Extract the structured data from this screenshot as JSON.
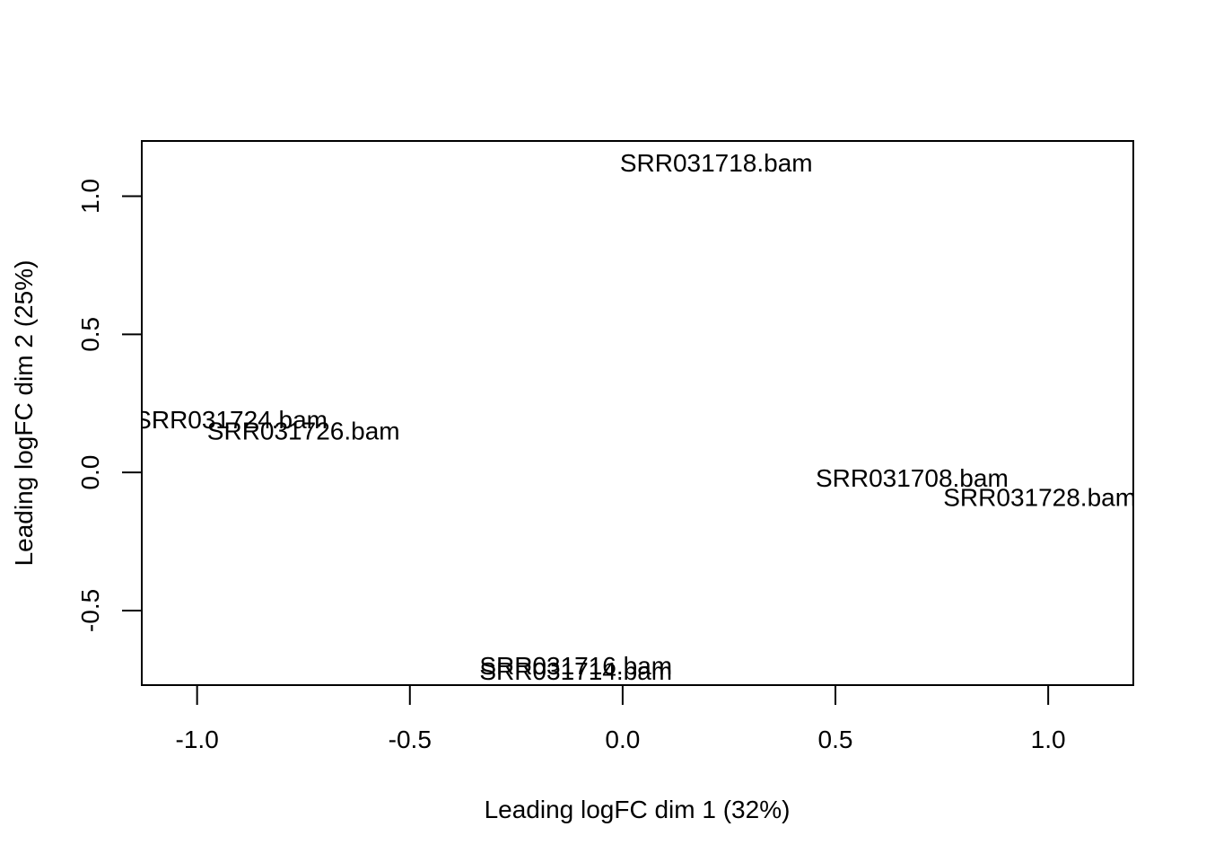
{
  "chart_data": {
    "type": "scatter",
    "title": "",
    "xlabel": "Leading logFC dim 1 (32%)",
    "ylabel": "Leading logFC dim 2 (25%)",
    "xlim": [
      -1.13,
      1.2
    ],
    "ylim": [
      -0.77,
      1.2
    ],
    "xticks": [
      -1.0,
      -0.5,
      0.0,
      0.5,
      1.0
    ],
    "xtick_labels": [
      "-1.0",
      "-0.5",
      "0.0",
      "0.5",
      "1.0"
    ],
    "yticks": [
      -0.5,
      0.0,
      0.5,
      1.0
    ],
    "ytick_labels": [
      "-0.5",
      "0.0",
      "0.5",
      "1.0"
    ],
    "grid": false,
    "legend": "none",
    "points": [
      {
        "label": "SRR031718.bam",
        "x": 0.22,
        "y": 1.12
      },
      {
        "label": "SRR031724.bam",
        "x": -0.92,
        "y": 0.19
      },
      {
        "label": "SRR031726.bam",
        "x": -0.75,
        "y": 0.15
      },
      {
        "label": "SRR031708.bam",
        "x": 0.68,
        "y": -0.02
      },
      {
        "label": "SRR031728.bam",
        "x": 0.98,
        "y": -0.09
      },
      {
        "label": "SRR031716.bam",
        "x": -0.11,
        "y": -0.7
      },
      {
        "label": "SRR031714.bam",
        "x": -0.11,
        "y": -0.72
      }
    ]
  }
}
